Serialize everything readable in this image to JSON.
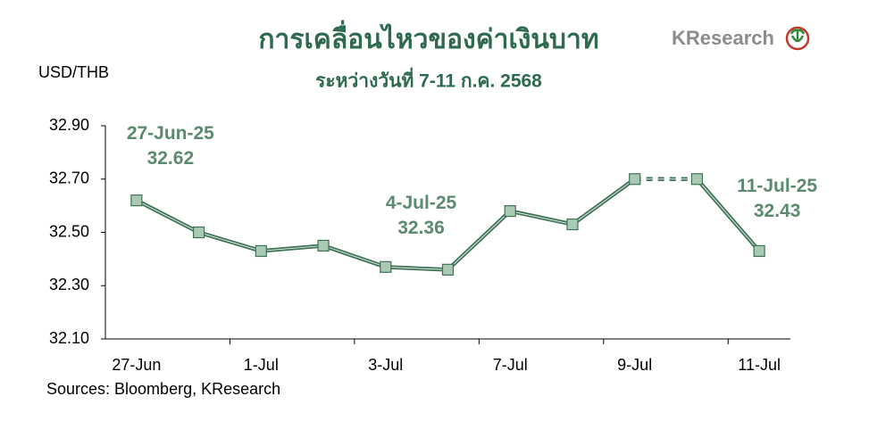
{
  "chart_data": {
    "type": "line",
    "title": "การเคลื่อนไหวของค่าเงินบาท",
    "subtitle": "ระหว่างวันที่ 7-11 ก.ค. 2568",
    "y_label": "USD/THB",
    "source": "Sources: Bloomberg, KResearch",
    "logo": "KResearch",
    "categories": [
      "27-Jun",
      null,
      "1-Jul",
      null,
      "3-Jul",
      null,
      "7-Jul",
      null,
      "9-Jul",
      null,
      "11-Jul"
    ],
    "series": [
      {
        "name": "USD/THB",
        "color": "#3f7358",
        "marker_color": "#a9c9b2",
        "values": [
          32.62,
          32.5,
          32.43,
          32.45,
          32.37,
          32.36,
          32.58,
          32.53,
          32.7,
          32.7,
          32.43
        ],
        "value_labels": [
          "32.62",
          null,
          null,
          null,
          null,
          "32.36",
          null,
          null,
          null,
          null,
          "32.43"
        ],
        "annotation_labels": [
          "27-Jun-25",
          null,
          null,
          null,
          null,
          "4-Jul-25",
          null,
          null,
          null,
          null,
          "11-Jul-25"
        ],
        "dashed_segments": [
          8
        ]
      }
    ],
    "annotation_color": "#5b8a70",
    "ylim": [
      32.1,
      32.9
    ],
    "yticks": [
      {
        "value": 32.1,
        "label": "32.10"
      },
      {
        "value": 32.3,
        "label": "32.30"
      },
      {
        "value": 32.5,
        "label": "32.50"
      },
      {
        "value": 32.7,
        "label": "32.70"
      },
      {
        "value": 32.9,
        "label": "32.90"
      }
    ],
    "grid": false
  }
}
